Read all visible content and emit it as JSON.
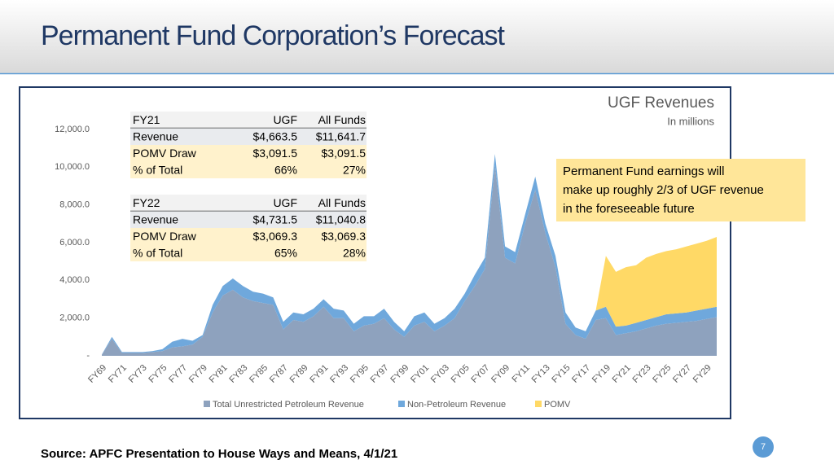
{
  "title": "Permanent Fund Corporation’s Forecast",
  "source": "Source:  APFC Presentation to House Ways and Means, 4/1/21",
  "page_number": "7",
  "tables": [
    {
      "header": [
        "FY21",
        "UGF",
        "All Funds"
      ],
      "rows": [
        [
          "Revenue",
          "$4,663.5",
          "$11,641.7"
        ],
        [
          "POMV Draw",
          "$3,091.5",
          "$3,091.5"
        ],
        [
          "% of Total",
          "66%",
          "27%"
        ]
      ]
    },
    {
      "header": [
        "FY22",
        "UGF",
        "All Funds"
      ],
      "rows": [
        [
          "Revenue",
          "$4,731.5",
          "$11,040.8"
        ],
        [
          "POMV Draw",
          "$3,069.3",
          "$3,069.3"
        ],
        [
          "% of Total",
          "65%",
          "28%"
        ]
      ]
    }
  ],
  "chart_data": {
    "type": "stacked_area",
    "title": "UGF Revenues",
    "subtitle": "In millions",
    "annotation": [
      "Permanent Fund earnings will",
      "make up roughly 2/3 of UGF revenue",
      "in the foreseeable future"
    ],
    "categories": [
      "FY69",
      null,
      "FY71",
      null,
      "FY73",
      null,
      "FY75",
      null,
      "FY77",
      null,
      "FY79",
      null,
      "FY81",
      null,
      "FY83",
      null,
      "FY85",
      null,
      "FY87",
      null,
      "FY89",
      null,
      "FY91",
      null,
      "FY93",
      null,
      "FY95",
      null,
      "FY97",
      null,
      "FY99",
      null,
      "FY01",
      null,
      "FY03",
      null,
      "FY05",
      null,
      "FY07",
      null,
      "FY09",
      null,
      "FY11",
      null,
      "FY13",
      null,
      "FY15",
      null,
      "FY17",
      null,
      "FY19",
      null,
      "FY21",
      null,
      "FY23",
      null,
      "FY25",
      null,
      "FY27",
      null,
      "FY29",
      null
    ],
    "series": [
      {
        "name": "Total Unrestricted Petroleum Revenue",
        "color": "#8ea2be",
        "values": [
          50,
          900,
          150,
          150,
          150,
          200,
          250,
          450,
          500,
          600,
          1000,
          2300,
          3200,
          3500,
          3100,
          2900,
          2800,
          2700,
          1400,
          1900,
          1800,
          2100,
          2600,
          2000,
          2000,
          1300,
          1600,
          1700,
          2000,
          1400,
          1000,
          1600,
          1800,
          1300,
          1600,
          2000,
          2900,
          3700,
          4600,
          10100,
          5200,
          4900,
          7000,
          8800,
          6500,
          4700,
          1700,
          1100,
          900,
          1900,
          2000,
          1100,
          1200,
          1300,
          1450,
          1600,
          1700,
          1750,
          1800,
          1850,
          1950,
          2050
        ]
      },
      {
        "name": "Non-Petroleum Revenue",
        "color": "#6fa8dc",
        "values": [
          20,
          100,
          50,
          50,
          50,
          50,
          100,
          300,
          400,
          200,
          100,
          400,
          500,
          600,
          600,
          500,
          500,
          400,
          400,
          400,
          400,
          400,
          400,
          500,
          400,
          400,
          500,
          400,
          500,
          400,
          300,
          500,
          500,
          400,
          400,
          500,
          400,
          600,
          600,
          600,
          600,
          600,
          500,
          700,
          500,
          600,
          600,
          400,
          400,
          500,
          600,
          450,
          400,
          450,
          450,
          450,
          500,
          500,
          500,
          550,
          550,
          550
        ]
      },
      {
        "name": "POMV",
        "color": "#ffd966",
        "values": [
          null,
          null,
          null,
          null,
          null,
          null,
          null,
          null,
          null,
          null,
          null,
          null,
          null,
          null,
          null,
          null,
          null,
          null,
          null,
          null,
          null,
          null,
          null,
          null,
          null,
          null,
          null,
          null,
          null,
          null,
          null,
          null,
          null,
          null,
          null,
          null,
          null,
          null,
          null,
          null,
          null,
          null,
          null,
          null,
          null,
          null,
          null,
          null,
          null,
          0,
          2700,
          2900,
          3100,
          3050,
          3300,
          3350,
          3350,
          3400,
          3500,
          3550,
          3600,
          3700
        ]
      }
    ],
    "ylim": [
      0,
      12000
    ],
    "yticks": [
      {
        "value": 0,
        "label": "-"
      },
      {
        "value": 2000,
        "label": "2,000.0"
      },
      {
        "value": 4000,
        "label": "4,000.0"
      },
      {
        "value": 6000,
        "label": "6,000.0"
      },
      {
        "value": 8000,
        "label": "8,000.0"
      },
      {
        "value": 10000,
        "label": "10,000.0"
      },
      {
        "value": 12000,
        "label": "12,000.0"
      }
    ],
    "grid": false,
    "legend": "bottom"
  }
}
